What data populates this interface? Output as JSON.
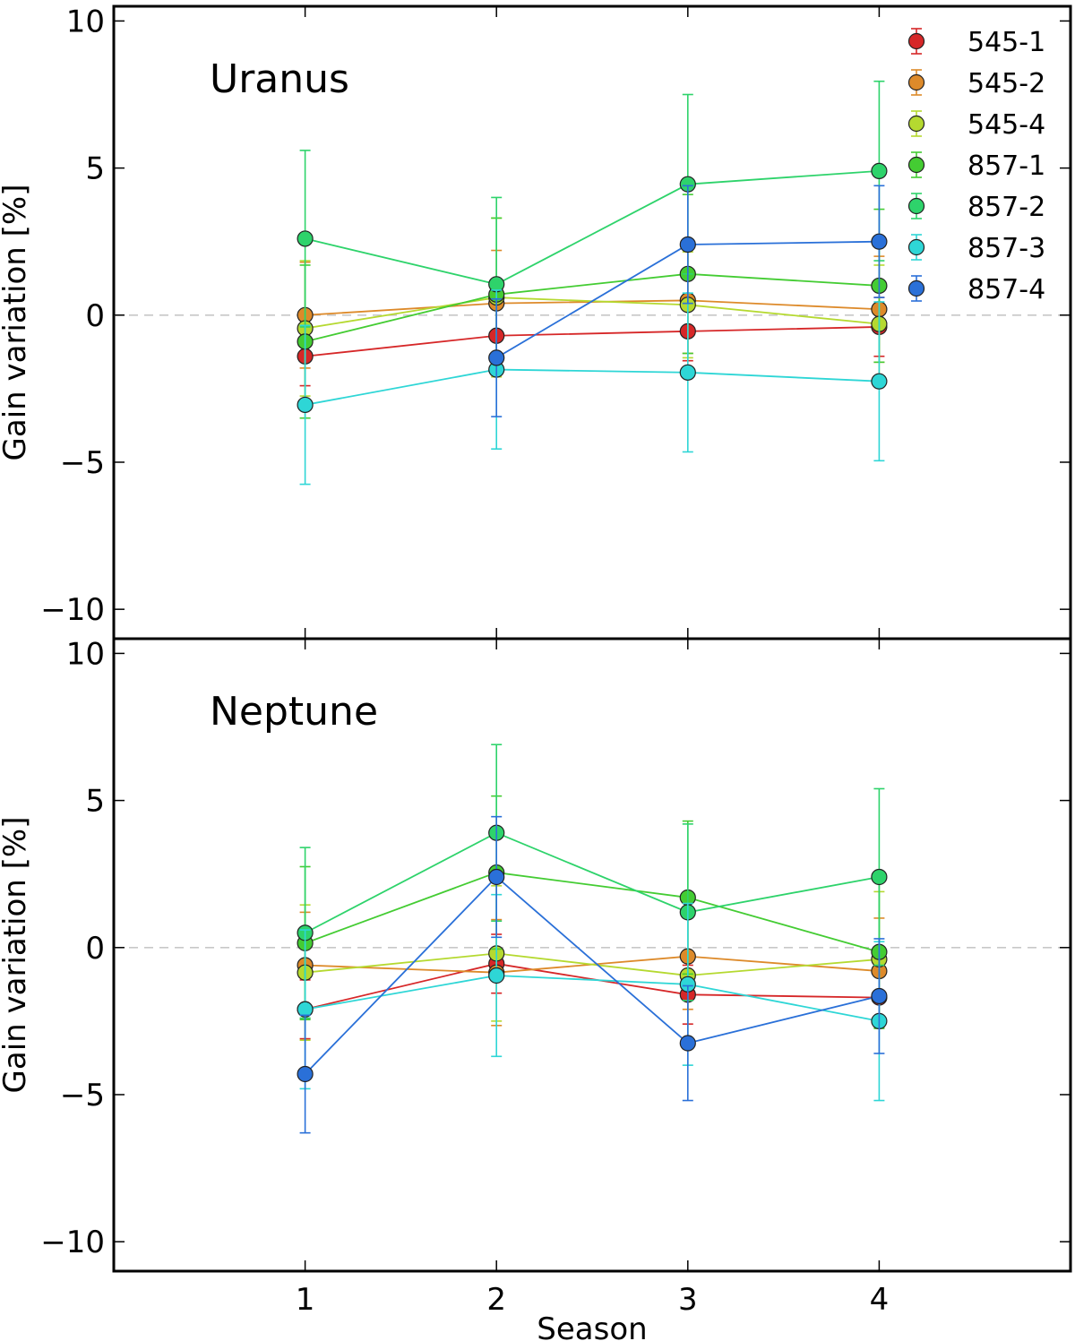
{
  "chart_data": {
    "type": "line",
    "xlabel": "Season",
    "x": [
      1,
      2,
      3,
      4
    ],
    "xticks": [
      "1",
      "2",
      "3",
      "4"
    ],
    "xlim": [
      0,
      5
    ],
    "legend": {
      "placement": "top-right",
      "entries": [
        {
          "name": "545-1",
          "color": "#d62728"
        },
        {
          "name": "545-2",
          "color": "#dd8a2a"
        },
        {
          "name": "545-4",
          "color": "#b5d930"
        },
        {
          "name": "857-1",
          "color": "#44cc33"
        },
        {
          "name": "857-2",
          "color": "#2ed36b"
        },
        {
          "name": "857-3",
          "color": "#2ed6d6"
        },
        {
          "name": "857-4",
          "color": "#2a70d8"
        }
      ]
    },
    "panels": [
      {
        "title": "Uranus",
        "ylabel": "Gain variation [%]",
        "ylim": [
          -11,
          10.5
        ],
        "yticks": [
          10,
          5,
          0,
          -5,
          -10
        ],
        "ytick_labels": [
          "10",
          "5",
          "0",
          "−10"
        ],
        "ytick_labels_full": [
          "10",
          "5",
          "0",
          "−5",
          "−10"
        ],
        "series": [
          {
            "name": "545-1",
            "values": [
              -1.4,
              -0.7,
              -0.55,
              -0.4
            ],
            "errors": [
              1.0,
              1.1,
              1.0,
              1.0
            ]
          },
          {
            "name": "545-2",
            "values": [
              0.0,
              0.4,
              0.5,
              0.2
            ],
            "errors": [
              1.8,
              1.8,
              1.8,
              1.8
            ]
          },
          {
            "name": "545-4",
            "values": [
              -0.45,
              0.6,
              0.35,
              -0.3
            ],
            "errors": [
              2.3,
              2.7,
              1.8,
              2.0
            ]
          },
          {
            "name": "857-1",
            "values": [
              -0.9,
              0.7,
              1.4,
              1.0
            ],
            "errors": [
              2.6,
              2.6,
              2.7,
              2.6
            ]
          },
          {
            "name": "857-2",
            "values": [
              2.6,
              1.05,
              4.45,
              4.9
            ],
            "errors": [
              3.0,
              2.95,
              3.05,
              3.05
            ]
          },
          {
            "name": "857-3",
            "values": [
              -3.05,
              -1.85,
              -1.95,
              -2.25
            ],
            "errors": [
              2.7,
              2.7,
              2.7,
              2.7
            ]
          },
          {
            "name": "857-4",
            "values": [
              null,
              -1.45,
              2.4,
              2.5
            ],
            "errors": [
              null,
              2.0,
              2.0,
              1.9
            ]
          }
        ]
      },
      {
        "title": "Neptune",
        "ylabel": "Gain variation [%]",
        "ylim": [
          -11,
          10.5
        ],
        "yticks": [
          10,
          5,
          0,
          -5,
          -10
        ],
        "ytick_labels": [
          "10",
          "5",
          "0",
          "−5",
          "−10"
        ],
        "series": [
          {
            "name": "545-1",
            "values": [
              -2.1,
              -0.55,
              -1.6,
              -1.7
            ],
            "errors": [
              1.0,
              1.0,
              1.0,
              1.0
            ]
          },
          {
            "name": "545-2",
            "values": [
              -0.6,
              -0.85,
              -0.3,
              -0.8
            ],
            "errors": [
              1.8,
              1.8,
              1.8,
              1.8
            ]
          },
          {
            "name": "545-4",
            "values": [
              -0.85,
              -0.2,
              -0.95,
              -0.4
            ],
            "errors": [
              2.3,
              2.3,
              2.3,
              2.3
            ]
          },
          {
            "name": "857-1",
            "values": [
              0.15,
              2.55,
              1.7,
              -0.15
            ],
            "errors": [
              2.6,
              2.6,
              2.6,
              2.6
            ]
          },
          {
            "name": "857-2",
            "values": [
              0.5,
              3.9,
              1.2,
              2.4
            ],
            "errors": [
              2.9,
              3.0,
              3.0,
              3.0
            ]
          },
          {
            "name": "857-3",
            "values": [
              -2.1,
              -0.95,
              -1.25,
              -2.5
            ],
            "errors": [
              2.7,
              2.75,
              2.75,
              2.7
            ]
          },
          {
            "name": "857-4",
            "values": [
              -4.3,
              2.4,
              -3.25,
              -1.65
            ],
            "errors": [
              2.0,
              2.05,
              1.95,
              1.95
            ]
          }
        ]
      }
    ]
  }
}
